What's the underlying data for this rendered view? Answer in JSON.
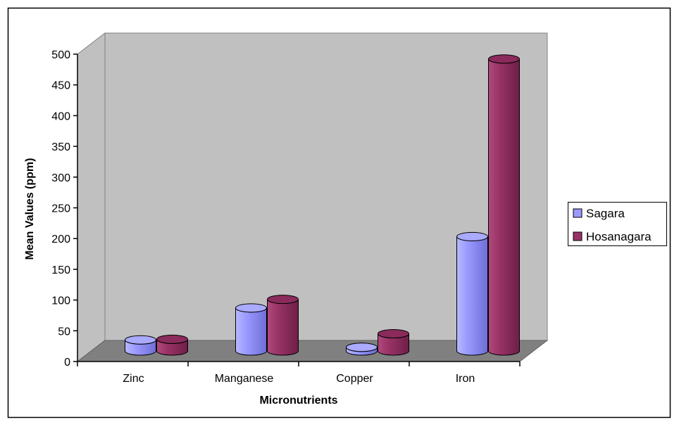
{
  "chart_data": {
    "type": "bar",
    "style": "3d-cylinder",
    "categories": [
      "Zinc",
      "Manganese",
      "Copper",
      "Iron"
    ],
    "series": [
      {
        "name": "Sagara",
        "values": [
          18,
          70,
          6,
          186
        ],
        "color": "#9999ff"
      },
      {
        "name": "Hosanagara",
        "values": [
          19,
          84,
          28,
          475
        ],
        "color": "#993366"
      }
    ],
    "xlabel": "Micronutrients",
    "ylabel": "Mean Values (ppm)",
    "ylim": [
      0,
      500
    ],
    "yticks": [
      "0",
      "50",
      "100",
      "150",
      "200",
      "250",
      "300",
      "350",
      "400",
      "450",
      "500"
    ],
    "grid": false,
    "legend_position": "right",
    "wall_color": "#c0c0c0",
    "floor_color": "#808080"
  }
}
